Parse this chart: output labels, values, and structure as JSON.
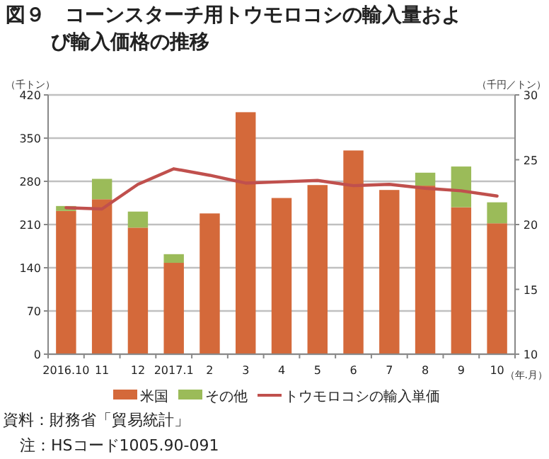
{
  "chart_data": {
    "type": "bar",
    "title": "図９　コーンスターチ用トウモロコシの輸入量および輸入価格の推移",
    "categories": [
      "2016.10",
      "11",
      "12",
      "2017.1",
      "2",
      "3",
      "4",
      "5",
      "6",
      "7",
      "8",
      "9",
      "10"
    ],
    "stacked": true,
    "series": [
      {
        "name": "米国",
        "color": "#d4693a",
        "values": [
          232,
          251,
          205,
          148,
          228,
          392,
          253,
          274,
          330,
          266,
          273,
          238,
          212
        ]
      },
      {
        "name": "その他",
        "color": "#9bbb59",
        "values": [
          8,
          33,
          26,
          14,
          0,
          0,
          0,
          0,
          0,
          0,
          21,
          66,
          34
        ]
      },
      {
        "name": "トウモロコシの輸入単価",
        "type": "line",
        "axis": "y2",
        "color": "#c0504d",
        "values": [
          21.3,
          21.2,
          23.1,
          24.3,
          23.8,
          23.2,
          23.3,
          23.4,
          23.0,
          23.1,
          22.8,
          22.6,
          22.2
        ]
      }
    ],
    "ylabel": "（千トン）",
    "y2label": "（千円／トン）",
    "xlabel": "（年.月）",
    "ylim": [
      0,
      420
    ],
    "yticks": [
      0,
      70,
      140,
      210,
      280,
      350,
      420
    ],
    "y2lim": [
      10,
      30
    ],
    "y2ticks": [
      10,
      15,
      20,
      25,
      30
    ],
    "grid": "y",
    "legend": "bottom",
    "annotations": [
      "資料：財務省「貿易統計」",
      "注：HSコード1005.90-091"
    ]
  }
}
